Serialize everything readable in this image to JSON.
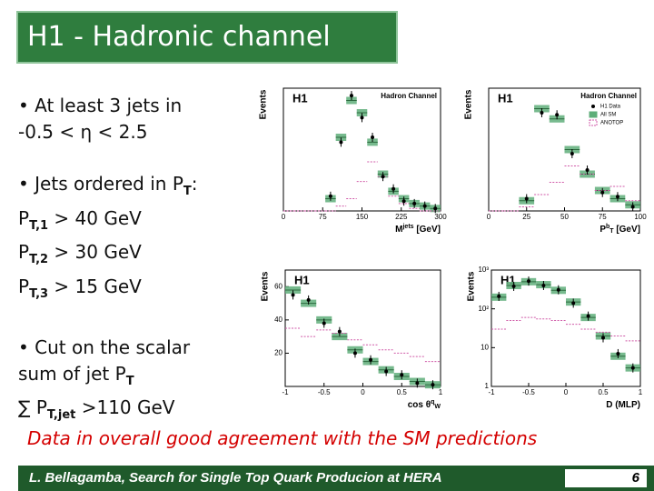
{
  "header": {
    "title": "H1 - Hadronic channel"
  },
  "bullets": [
    [
      [
        {
          "t": "• At least 3 jets in"
        }
      ],
      [
        {
          "t": "-0.5 < η < 2.5"
        }
      ]
    ],
    [
      [
        {
          "t": "• Jets ordered in P"
        },
        {
          "t": "T",
          "pos": "sub"
        },
        {
          "t": ":"
        }
      ],
      [
        {
          "t": "P"
        },
        {
          "t": "T,1",
          "pos": "sub"
        },
        {
          "t": " > 40 GeV"
        }
      ],
      [
        {
          "t": "P"
        },
        {
          "t": "T,2",
          "pos": "sub"
        },
        {
          "t": " > 30 GeV"
        }
      ],
      [
        {
          "t": "P"
        },
        {
          "t": "T,3",
          "pos": "sub"
        },
        {
          "t": " > 15 GeV"
        }
      ]
    ],
    [
      [
        {
          "t": "• Cut on the scalar"
        }
      ],
      [
        {
          "t": "sum of jet P"
        },
        {
          "t": "T",
          "pos": "sub"
        }
      ],
      [
        {
          "t": "∑ P"
        },
        {
          "t": "T,jet",
          "pos": "sub"
        },
        {
          "t": " >110 GeV"
        }
      ]
    ]
  ],
  "plots": [
    {
      "title": "H1",
      "ylabel": "Events",
      "channel": "Hadron Channel",
      "xlabel": [
        {
          "t": "M"
        },
        {
          "t": "jets",
          "pos": "sup"
        },
        {
          "t": " [GeV]"
        }
      ],
      "xlim": [
        0,
        300
      ],
      "xticks": [
        0,
        75,
        150,
        225,
        300
      ],
      "ylim": [
        0,
        50
      ],
      "log": false,
      "sm": [
        0,
        0,
        0,
        0,
        5,
        30,
        45,
        40,
        28,
        15,
        8,
        5,
        3,
        2,
        1
      ],
      "data": [
        0,
        0,
        0,
        0,
        6,
        28,
        47,
        38,
        30,
        14,
        9,
        4,
        3,
        2,
        1
      ],
      "anotop": [
        0,
        0,
        0,
        0,
        0,
        2,
        5,
        12,
        20,
        14,
        6,
        3,
        1,
        0,
        0
      ]
    },
    {
      "title": "H1",
      "ylabel": "Events",
      "channel": "Hadron Channel",
      "legend": [
        "H1 Data",
        "All SM",
        "ANOTOP"
      ],
      "xlabel": [
        {
          "t": "P"
        },
        {
          "t": "b",
          "pos": "sup"
        },
        {
          "t": "T",
          "pos": "sub"
        },
        {
          "t": " [GeV]"
        }
      ],
      "xlim": [
        0,
        100
      ],
      "xticks": [
        0,
        25,
        50,
        75,
        100
      ],
      "ylim": [
        0,
        60
      ],
      "log": false,
      "sm": [
        0,
        0,
        5,
        50,
        45,
        30,
        18,
        10,
        6,
        3
      ],
      "data": [
        0,
        0,
        6,
        48,
        47,
        28,
        20,
        9,
        7,
        2
      ],
      "anotop": [
        0,
        0,
        2,
        8,
        14,
        22,
        18,
        10,
        12,
        5
      ]
    },
    {
      "title": "H1",
      "ylabel": "Events",
      "xlabel": [
        {
          "t": "cos θ"
        },
        {
          "t": "q",
          "pos": "sup"
        },
        {
          "t": "W",
          "pos": "sub"
        }
      ],
      "xlim": [
        -1,
        1
      ],
      "xticks": [
        -1,
        -0.5,
        0,
        0.5,
        1
      ],
      "ylim": [
        0,
        70
      ],
      "yticks": [
        20,
        40,
        60
      ],
      "log": false,
      "sm": [
        58,
        50,
        40,
        30,
        22,
        15,
        10,
        6,
        3,
        1
      ],
      "data": [
        55,
        52,
        38,
        33,
        20,
        16,
        9,
        7,
        2,
        1
      ],
      "anotop": [
        35,
        30,
        34,
        32,
        28,
        25,
        22,
        20,
        18,
        15
      ]
    },
    {
      "title": "H1",
      "ylabel": "Events",
      "xlabel": [
        {
          "t": "D (MLP)"
        }
      ],
      "xlim": [
        -1,
        1
      ],
      "xticks": [
        -1,
        -0.5,
        0,
        0.5,
        1
      ],
      "ylim": [
        1,
        1000
      ],
      "yticks": [
        1,
        10,
        {
          "value": 100,
          "label": "10²"
        },
        {
          "value": 1000,
          "label": "10³"
        }
      ],
      "log": true,
      "sm": [
        200,
        400,
        500,
        420,
        300,
        150,
        60,
        20,
        6,
        3
      ],
      "data": [
        210,
        380,
        520,
        400,
        310,
        140,
        65,
        18,
        7,
        3
      ],
      "anotop": [
        30,
        50,
        60,
        55,
        50,
        40,
        30,
        25,
        20,
        15
      ]
    }
  ],
  "conclusion": "Data in overall good agreement with the SM predictions",
  "footer": {
    "text": "L. Bellagamba, Search for Single Top Quark Producion at HERA",
    "page": "6"
  }
}
